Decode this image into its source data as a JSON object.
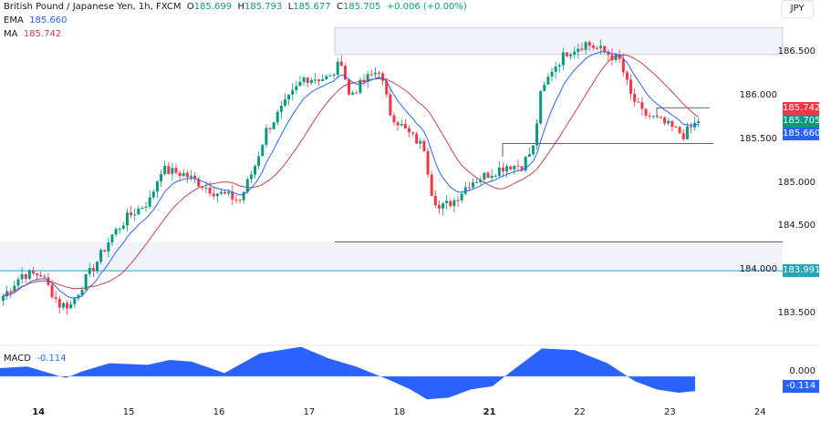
{
  "header": {
    "symbol": "British Pound / Japanese Yen, 1h, FXCM",
    "o_label": "O",
    "o": "185.699",
    "h_label": "H",
    "h": "185.793",
    "l_label": "L",
    "l": "185.677",
    "c_label": "C",
    "c": "185.705",
    "change": "+0.006 (+0.00%)",
    "ema_label": "EMA",
    "ema": "185.660",
    "ma_label": "MA",
    "ma": "185.742",
    "currency": "JPY"
  },
  "colors": {
    "up": "#089981",
    "down": "#f23645",
    "ema": "#2962ff",
    "ma": "#c2424f",
    "macd": "#2962ff",
    "level": "#26a6b8"
  },
  "price_tags": {
    "ma": "185.742",
    "close": "185.705",
    "ema": "185.660",
    "level": "183.991"
  },
  "macd": {
    "label": "MACD",
    "value": "-0.114",
    "zero": "0.000"
  },
  "chart_data": {
    "type": "candlestick",
    "yticks": [
      "186.500",
      "186.000",
      "185.500",
      "185.000",
      "184.500",
      "184.000",
      "183.500"
    ],
    "ytick_values": [
      186.5,
      186.0,
      185.5,
      185.0,
      184.5,
      184.0,
      183.5
    ],
    "xticks": [
      {
        "label": "14",
        "bar": 10
      },
      {
        "label": "15",
        "bar": 34
      },
      {
        "label": "16",
        "bar": 58
      },
      {
        "label": "17",
        "bar": 82
      },
      {
        "label": "18",
        "bar": 106
      },
      {
        "label": "21",
        "bar": 130
      },
      {
        "label": "22",
        "bar": 154
      },
      {
        "label": "23",
        "bar": 178
      },
      {
        "label": "24",
        "bar": 202
      }
    ],
    "close_waypoints": [
      [
        0,
        183.7
      ],
      [
        5,
        183.95
      ],
      [
        10,
        183.95
      ],
      [
        15,
        183.6
      ],
      [
        18,
        183.6
      ],
      [
        22,
        183.9
      ],
      [
        25,
        184.1
      ],
      [
        29,
        184.4
      ],
      [
        33,
        184.6
      ],
      [
        39,
        184.8
      ],
      [
        42,
        185.15
      ],
      [
        48,
        185.1
      ],
      [
        56,
        184.9
      ],
      [
        63,
        184.8
      ],
      [
        67,
        185.2
      ],
      [
        70,
        185.6
      ],
      [
        75,
        185.9
      ],
      [
        80,
        186.2
      ],
      [
        87,
        186.2
      ],
      [
        90,
        186.4
      ],
      [
        92,
        186.0
      ],
      [
        97,
        186.2
      ],
      [
        100,
        186.3
      ],
      [
        103,
        185.8
      ],
      [
        107,
        185.6
      ],
      [
        112,
        185.4
      ],
      [
        114,
        184.9
      ],
      [
        116,
        184.7
      ],
      [
        120,
        184.8
      ],
      [
        124,
        185.0
      ],
      [
        129,
        185.1
      ],
      [
        134,
        185.2
      ],
      [
        138,
        185.2
      ],
      [
        141,
        185.4
      ],
      [
        143,
        186.0
      ],
      [
        146,
        186.3
      ],
      [
        150,
        186.5
      ],
      [
        155,
        186.6
      ],
      [
        160,
        186.5
      ],
      [
        164,
        186.4
      ],
      [
        167,
        186.0
      ],
      [
        170,
        185.8
      ],
      [
        175,
        185.7
      ],
      [
        181,
        185.55
      ],
      [
        185,
        185.705
      ]
    ],
    "macd_waypoints": [
      [
        0,
        0.05
      ],
      [
        10,
        0.06
      ],
      [
        18,
        0.02
      ],
      [
        24,
        -0.01
      ],
      [
        30,
        0.03
      ],
      [
        40,
        0.08
      ],
      [
        54,
        0.07
      ],
      [
        62,
        0.1
      ],
      [
        70,
        0.09
      ],
      [
        82,
        0.02
      ],
      [
        95,
        0.14
      ],
      [
        110,
        0.18
      ],
      [
        120,
        0.11
      ],
      [
        130,
        0.06
      ],
      [
        136,
        0.02
      ],
      [
        142,
        -0.02
      ],
      [
        150,
        -0.08
      ],
      [
        156,
        -0.14
      ],
      [
        164,
        -0.13
      ],
      [
        172,
        -0.08
      ],
      [
        180,
        -0.06
      ],
      [
        186,
        0.02
      ],
      [
        198,
        0.17
      ],
      [
        210,
        0.16
      ],
      [
        222,
        0.08
      ],
      [
        232,
        -0.03
      ],
      [
        240,
        -0.08
      ],
      [
        248,
        -0.1
      ],
      [
        254,
        -0.09
      ]
    ],
    "levels": [
      {
        "value": 183.991,
        "type": "horizontal"
      },
      {
        "value": 184.32,
        "type": "horizontal"
      },
      {
        "value": 185.45,
        "type": "segment"
      },
      {
        "value": 185.86,
        "type": "segment"
      }
    ],
    "zones": [
      {
        "from": 186.47,
        "to": 186.78
      },
      {
        "from": 183.991,
        "to": 184.32
      }
    ],
    "indicators": [
      "EMA",
      "MA"
    ]
  }
}
